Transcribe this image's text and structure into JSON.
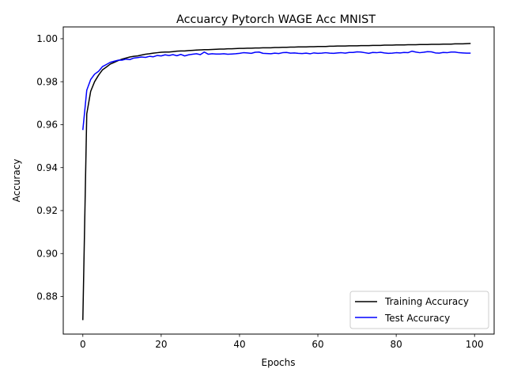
{
  "chart_data": {
    "type": "line",
    "title": "Accuarcy Pytorch WAGE Acc MNIST",
    "xlabel": "Epochs",
    "ylabel": "Accuracy",
    "xlim": [
      -5,
      105
    ],
    "ylim": [
      0.8625,
      1.0055
    ],
    "xticks": [
      0,
      20,
      40,
      60,
      80,
      100
    ],
    "yticks": [
      0.88,
      0.9,
      0.92,
      0.94,
      0.96,
      0.98,
      1.0
    ],
    "xtick_labels": [
      "0",
      "20",
      "40",
      "60",
      "80",
      "100"
    ],
    "ytick_labels": [
      "0.88",
      "0.90",
      "0.92",
      "0.94",
      "0.96",
      "0.98",
      "1.00"
    ],
    "legend_position": "lower-right",
    "grid": false,
    "series": [
      {
        "name": "Training Accuracy",
        "color": "#000000",
        "x": [
          0,
          1,
          2,
          3,
          4,
          5,
          6,
          7,
          8,
          9,
          10,
          11,
          12,
          13,
          14,
          15,
          16,
          17,
          18,
          19,
          20,
          21,
          22,
          23,
          24,
          25,
          26,
          27,
          28,
          29,
          30,
          31,
          32,
          33,
          34,
          35,
          36,
          37,
          38,
          39,
          40,
          41,
          42,
          43,
          44,
          45,
          46,
          47,
          48,
          49,
          50,
          51,
          52,
          53,
          54,
          55,
          56,
          57,
          58,
          59,
          60,
          61,
          62,
          63,
          64,
          65,
          66,
          67,
          68,
          69,
          70,
          71,
          72,
          73,
          74,
          75,
          76,
          77,
          78,
          79,
          80,
          81,
          82,
          83,
          84,
          85,
          86,
          87,
          88,
          89,
          90,
          91,
          92,
          93,
          94,
          95,
          96,
          97,
          98,
          99
        ],
        "y": [
          0.869,
          0.965,
          0.9755,
          0.98,
          0.983,
          0.9855,
          0.9868,
          0.9882,
          0.989,
          0.9898,
          0.9905,
          0.991,
          0.9915,
          0.9918,
          0.992,
          0.9924,
          0.9928,
          0.993,
          0.9933,
          0.9935,
          0.9937,
          0.9938,
          0.9938,
          0.994,
          0.9942,
          0.9943,
          0.9943,
          0.9945,
          0.9946,
          0.9947,
          0.9948,
          0.9949,
          0.9949,
          0.995,
          0.9951,
          0.9952,
          0.9952,
          0.9953,
          0.9953,
          0.9954,
          0.9955,
          0.9955,
          0.9956,
          0.9956,
          0.9957,
          0.9957,
          0.9958,
          0.9958,
          0.9958,
          0.9959,
          0.9959,
          0.996,
          0.996,
          0.9961,
          0.9961,
          0.9962,
          0.9962,
          0.9962,
          0.9963,
          0.9963,
          0.9964,
          0.9964,
          0.9964,
          0.9965,
          0.9965,
          0.9966,
          0.9966,
          0.9966,
          0.9967,
          0.9967,
          0.9967,
          0.9968,
          0.9968,
          0.9968,
          0.9969,
          0.9969,
          0.9969,
          0.997,
          0.997,
          0.997,
          0.9971,
          0.9971,
          0.9971,
          0.9972,
          0.9972,
          0.9972,
          0.9973,
          0.9973,
          0.9973,
          0.9974,
          0.9974,
          0.9974,
          0.9975,
          0.9975,
          0.9975,
          0.9976,
          0.9976,
          0.9976,
          0.9977,
          0.9978
        ]
      },
      {
        "name": "Test Accuracy",
        "color": "#0000ff",
        "x": [
          0,
          1,
          2,
          3,
          4,
          5,
          6,
          7,
          8,
          9,
          10,
          11,
          12,
          13,
          14,
          15,
          16,
          17,
          18,
          19,
          20,
          21,
          22,
          23,
          24,
          25,
          26,
          27,
          28,
          29,
          30,
          31,
          32,
          33,
          34,
          35,
          36,
          37,
          38,
          39,
          40,
          41,
          42,
          43,
          44,
          45,
          46,
          47,
          48,
          49,
          50,
          51,
          52,
          53,
          54,
          55,
          56,
          57,
          58,
          59,
          60,
          61,
          62,
          63,
          64,
          65,
          66,
          67,
          68,
          69,
          70,
          71,
          72,
          73,
          74,
          75,
          76,
          77,
          78,
          79,
          80,
          81,
          82,
          83,
          84,
          85,
          86,
          87,
          88,
          89,
          90,
          91,
          92,
          93,
          94,
          95,
          96,
          97,
          98,
          99
        ],
        "y": [
          0.9575,
          0.976,
          0.981,
          0.9835,
          0.9848,
          0.987,
          0.988,
          0.989,
          0.9895,
          0.99,
          0.99,
          0.9905,
          0.9903,
          0.991,
          0.9912,
          0.9915,
          0.9913,
          0.9918,
          0.9916,
          0.9922,
          0.992,
          0.9925,
          0.9922,
          0.9926,
          0.9921,
          0.9927,
          0.992,
          0.9925,
          0.9928,
          0.993,
          0.9926,
          0.9938,
          0.9928,
          0.993,
          0.9929,
          0.9929,
          0.993,
          0.9928,
          0.9929,
          0.993,
          0.9932,
          0.9935,
          0.9934,
          0.9932,
          0.9937,
          0.9938,
          0.9932,
          0.9931,
          0.993,
          0.9933,
          0.9931,
          0.9935,
          0.9936,
          0.9933,
          0.9934,
          0.9932,
          0.9931,
          0.9933,
          0.993,
          0.9934,
          0.9932,
          0.9933,
          0.9935,
          0.9933,
          0.9932,
          0.9934,
          0.9935,
          0.9933,
          0.9936,
          0.9936,
          0.9939,
          0.9938,
          0.9935,
          0.9932,
          0.9936,
          0.9935,
          0.9937,
          0.9934,
          0.9932,
          0.9933,
          0.9935,
          0.9934,
          0.9936,
          0.9935,
          0.9942,
          0.9938,
          0.9935,
          0.9937,
          0.994,
          0.9939,
          0.9934,
          0.9933,
          0.9936,
          0.9935,
          0.9938,
          0.9938,
          0.9935,
          0.9934,
          0.9933,
          0.9933
        ]
      }
    ]
  }
}
